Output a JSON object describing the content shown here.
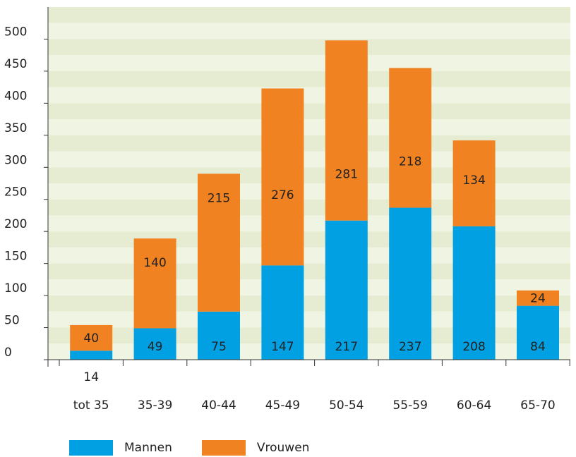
{
  "chart_data": {
    "type": "bar",
    "stacked": true,
    "categories": [
      "tot 35",
      "35-39",
      "40-44",
      "45-49",
      "50-54",
      "55-59",
      "60-64",
      "65-70"
    ],
    "series": [
      {
        "name": "Mannen",
        "color": "#00a0e3",
        "values": [
          14,
          49,
          75,
          147,
          217,
          237,
          208,
          84
        ]
      },
      {
        "name": "Vrouwen",
        "color": "#f08222",
        "values": [
          40,
          140,
          215,
          276,
          281,
          218,
          134,
          24
        ]
      }
    ],
    "ylim": [
      0,
      550
    ],
    "yticks": [
      "0",
      "50",
      "100",
      "150",
      "200",
      "250",
      "300",
      "350",
      "400",
      "450",
      "500"
    ],
    "grid": true,
    "legend_position": "bottom"
  }
}
